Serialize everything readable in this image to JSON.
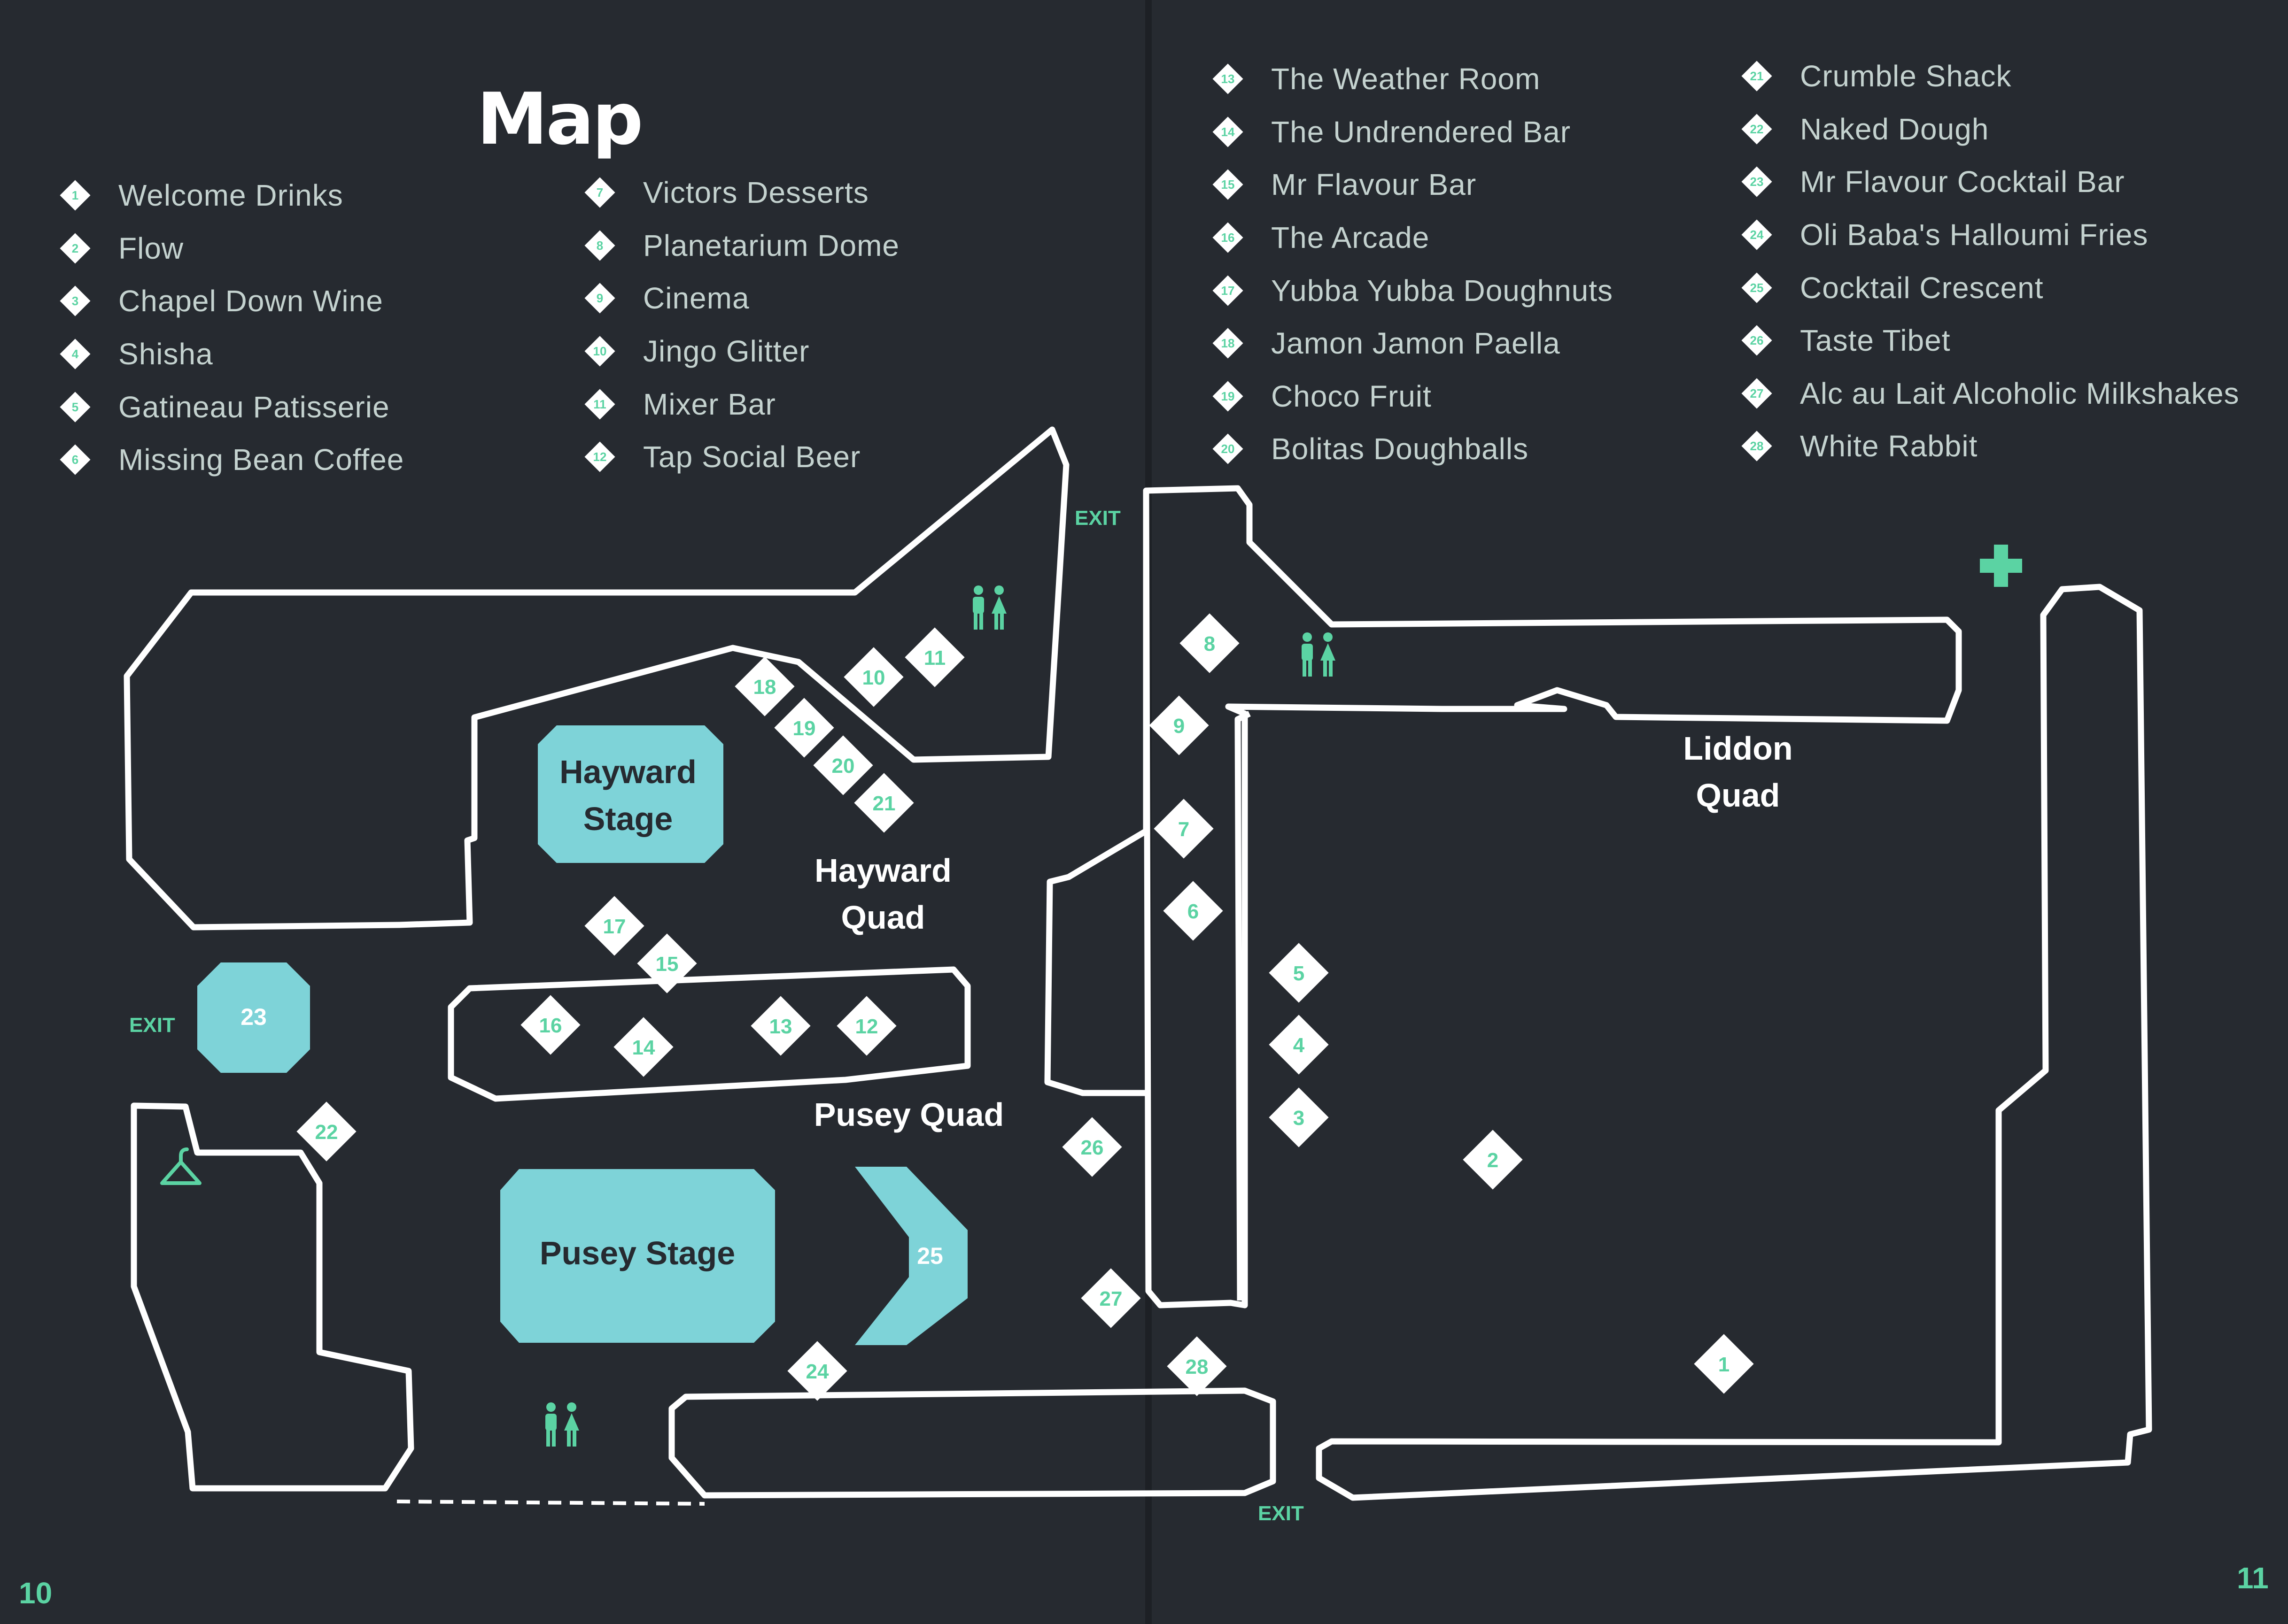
{
  "title": "Map",
  "legend": [
    {
      "num": "1",
      "label": "Welcome Drinks"
    },
    {
      "num": "2",
      "label": "Flow"
    },
    {
      "num": "3",
      "label": "Chapel Down Wine"
    },
    {
      "num": "4",
      "label": "Shisha"
    },
    {
      "num": "5",
      "label": "Gatineau Patisserie"
    },
    {
      "num": "6",
      "label": "Missing Bean Coffee"
    },
    {
      "num": "7",
      "label": "Victors Desserts"
    },
    {
      "num": "8",
      "label": "Planetarium Dome"
    },
    {
      "num": "9",
      "label": "Cinema"
    },
    {
      "num": "10",
      "label": "Jingo Glitter"
    },
    {
      "num": "11",
      "label": "Mixer Bar"
    },
    {
      "num": "12",
      "label": "Tap Social Beer"
    },
    {
      "num": "13",
      "label": "The Weather Room"
    },
    {
      "num": "14",
      "label": "The Undrendered Bar"
    },
    {
      "num": "15",
      "label": "Mr Flavour Bar"
    },
    {
      "num": "16",
      "label": "The Arcade"
    },
    {
      "num": "17",
      "label": "Yubba Yubba Doughnuts"
    },
    {
      "num": "18",
      "label": "Jamon Jamon Paella"
    },
    {
      "num": "19",
      "label": "Choco Fruit"
    },
    {
      "num": "20",
      "label": "Bolitas Doughballs"
    },
    {
      "num": "21",
      "label": "Crumble Shack"
    },
    {
      "num": "22",
      "label": "Naked Dough"
    },
    {
      "num": "23",
      "label": "Mr Flavour Cocktail Bar"
    },
    {
      "num": "24",
      "label": "Oli Baba's Halloumi Fries"
    },
    {
      "num": "25",
      "label": "Cocktail Crescent"
    },
    {
      "num": "26",
      "label": "Taste Tibet"
    },
    {
      "num": "27",
      "label": "Alc au Lait Alcoholic Milkshakes"
    },
    {
      "num": "28",
      "label": "White Rabbit"
    }
  ],
  "areas": {
    "hayward_stage": [
      "Hayward",
      "Stage"
    ],
    "hayward_quad": [
      "Hayward",
      "Quad"
    ],
    "pusey_quad": "Pusey Quad",
    "pusey_stage": "Pusey Stage",
    "liddon_quad": [
      "Liddon",
      "Quad"
    ],
    "stage_23": "23",
    "stage_25": "25"
  },
  "exits": [
    "EXIT",
    "EXIT",
    "EXIT"
  ],
  "markers": [
    "1",
    "2",
    "3",
    "4",
    "5",
    "6",
    "7",
    "8",
    "9",
    "10",
    "11",
    "12",
    "13",
    "14",
    "15",
    "16",
    "17",
    "18",
    "19",
    "20",
    "21",
    "22",
    "24",
    "26",
    "27",
    "28"
  ],
  "icons": [
    "toilets-icon",
    "toilets-icon",
    "toilets-icon",
    "first-aid-icon",
    "cloakroom-icon"
  ],
  "colors": {
    "background": "#262a30",
    "accent": "#5bd3a3",
    "stage": "#7ed3d8",
    "outline": "#ffffff"
  },
  "page_numbers": {
    "left": "10",
    "right": "11"
  }
}
